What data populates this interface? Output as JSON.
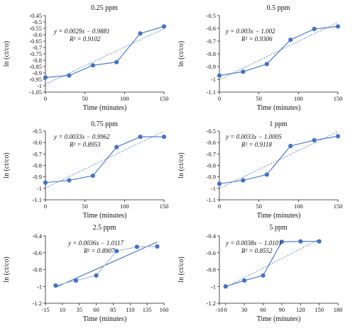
{
  "chart_data": [
    {
      "type": "scatter",
      "title": "0.25 ppm",
      "xlabel": "Time (minutes)",
      "ylabel": "ln (ct/co)",
      "xlim": [
        0,
        150
      ],
      "ylim": [
        -1.05,
        -0.45
      ],
      "xticks": [
        0,
        50,
        100,
        150
      ],
      "yticks": [
        -0.45,
        -0.5,
        -0.55,
        -0.6,
        -0.65,
        -0.7,
        -0.75,
        -0.8,
        -0.85,
        -0.9,
        -0.95,
        -1,
        -1.05
      ],
      "ytick_labels": [
        "-0.45",
        "-0.5",
        "-0.55",
        "-0.6",
        "-0.65",
        "-0.7",
        "-0.75",
        "-0.8",
        "-0.85",
        "-0.9",
        "-0.95",
        "-1",
        "-1.05"
      ],
      "x": [
        0,
        30,
        60,
        90,
        120,
        150
      ],
      "y": [
        -0.935,
        -0.92,
        -0.84,
        -0.815,
        -0.59,
        -0.535
      ],
      "trend": {
        "slope": 0.0029,
        "intercept": -0.9881,
        "style": "dotted"
      },
      "equation": "y = 0.0029x − 0.9881",
      "r2": "R² = 0.9102"
    },
    {
      "type": "scatter",
      "title": "0.5 ppm",
      "xlabel": "Time (minutes)",
      "ylabel": "ln (ct/co)",
      "xlim": [
        0,
        150
      ],
      "ylim": [
        -1.1,
        -0.5
      ],
      "xticks": [
        0,
        50,
        100,
        150
      ],
      "yticks": [
        -0.5,
        -0.6,
        -0.7,
        -0.8,
        -0.9,
        -1,
        -1.1
      ],
      "ytick_labels": [
        "-0.5",
        "-0.6",
        "-0.7",
        "-0.8",
        "-0.9",
        "-1",
        "-1.1"
      ],
      "x": [
        0,
        30,
        60,
        90,
        120,
        150
      ],
      "y": [
        -0.97,
        -0.94,
        -0.88,
        -0.69,
        -0.605,
        -0.585
      ],
      "trend": {
        "slope": 0.003,
        "intercept": -1.002,
        "style": "dotted"
      },
      "equation": "y = 0.003x − 1.002",
      "r2": "R² = 0.9306"
    },
    {
      "type": "scatter",
      "title": "0.75 ppm",
      "xlabel": "Time (minutes)",
      "ylabel": "ln (ct/co)",
      "xlim": [
        0,
        150
      ],
      "ylim": [
        -1.1,
        -0.5
      ],
      "xticks": [
        0,
        50,
        100,
        150
      ],
      "yticks": [
        -0.5,
        -0.6,
        -0.7,
        -0.8,
        -0.9,
        -1,
        -1.1
      ],
      "ytick_labels": [
        "-0.5",
        "-0.6",
        "-0.7",
        "-0.8",
        "-0.9",
        "-1",
        "-1.1"
      ],
      "x": [
        0,
        30,
        60,
        90,
        120,
        150
      ],
      "y": [
        -0.95,
        -0.93,
        -0.89,
        -0.64,
        -0.55,
        -0.55
      ],
      "trend": {
        "slope": 0.0033,
        "intercept": -0.9962,
        "style": "dotted"
      },
      "equation": "y = 0.0033x − 0.9962",
      "r2": "R² = 0.8953"
    },
    {
      "type": "scatter",
      "title": "1 ppm",
      "xlabel": "Time (minutes)",
      "ylabel": "ln (ct/co)",
      "xlim": [
        0,
        150
      ],
      "ylim": [
        -1.1,
        -0.5
      ],
      "xticks": [
        0,
        50,
        100,
        150
      ],
      "yticks": [
        -0.5,
        -0.6,
        -0.7,
        -0.8,
        -0.9,
        -1,
        -1.1
      ],
      "ytick_labels": [
        "-0.5",
        "-0.6",
        "-0.7",
        "-0.8",
        "-0.9",
        "-1",
        "-1.1"
      ],
      "x": [
        0,
        30,
        60,
        90,
        120,
        150
      ],
      "y": [
        -0.96,
        -0.93,
        -0.88,
        -0.63,
        -0.58,
        -0.545
      ],
      "trend": {
        "slope": 0.0033,
        "intercept": -1.0005,
        "style": "dotted"
      },
      "equation": "y = 0.0033x − 1.0005",
      "r2": "R² = 0.9118"
    },
    {
      "type": "scatter",
      "title": "2.5 ppm",
      "xlabel": "Time (minutes)",
      "ylabel": "ln (ct/co)",
      "xlim": [
        -15,
        160
      ],
      "ylim": [
        -1.2,
        -0.4
      ],
      "xticks": [
        -15,
        10,
        35,
        60,
        85,
        110,
        135,
        160
      ],
      "yticks": [
        -0.4,
        -0.6,
        -0.8,
        -1,
        -1.2
      ],
      "ytick_labels": [
        "-0.4",
        "-0.6",
        "-0.8",
        "-1",
        "-1.2"
      ],
      "x": [
        0,
        30,
        60,
        90,
        120,
        150
      ],
      "y": [
        -0.99,
        -0.93,
        -0.87,
        -0.58,
        -0.53,
        -0.525
      ],
      "trend": {
        "slope": 0.0036,
        "intercept": -1.0117,
        "style": "solid"
      },
      "equation": "y = 0.0036x − 1.0117",
      "r2": "R² = 0.8907"
    },
    {
      "type": "scatter",
      "title": "5 ppm",
      "xlabel": "Time (minutes)",
      "ylabel": "ln (ct/co)",
      "xlim": [
        -10,
        180
      ],
      "ylim": [
        -1.2,
        -0.4
      ],
      "xticks": [
        -10,
        0,
        30,
        60,
        90,
        120,
        150,
        180
      ],
      "xtick_labels": [
        "-10",
        "0",
        "30",
        "60",
        "90",
        "120",
        "150",
        "180"
      ],
      "yticks": [
        -0.4,
        -0.6,
        -0.8,
        -1,
        -1.2
      ],
      "ytick_labels": [
        "-0.4",
        "-0.6",
        "-0.8",
        "-1",
        "-1.2"
      ],
      "x": [
        0,
        30,
        60,
        90,
        120,
        150
      ],
      "y": [
        -1.0,
        -0.93,
        -0.87,
        -0.47,
        -0.465,
        -0.465
      ],
      "trend": {
        "slope": 0.0038,
        "intercept": -1.0101,
        "style": "dotted"
      },
      "equation": "y = 0.0038x − 1.0101",
      "r2": "R² = 0.8552"
    }
  ]
}
